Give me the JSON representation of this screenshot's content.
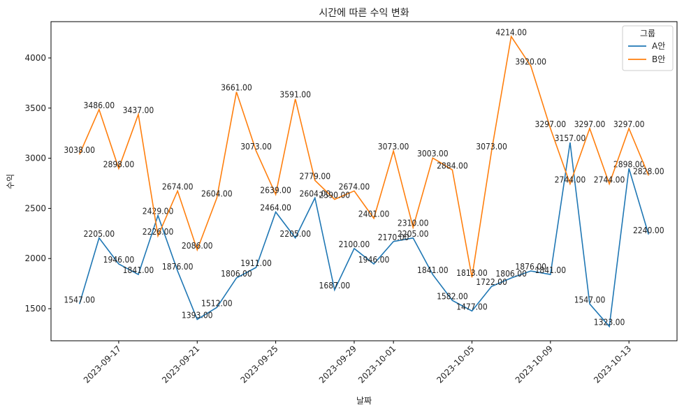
{
  "chart_data": {
    "type": "line",
    "title": "시간에 따른 수익 변화",
    "x_label": "날짜",
    "y_label": "수익",
    "x": [
      "2023-09-15",
      "2023-09-16",
      "2023-09-17",
      "2023-09-18",
      "2023-09-19",
      "2023-09-20",
      "2023-09-21",
      "2023-09-22",
      "2023-09-23",
      "2023-09-24",
      "2023-09-25",
      "2023-09-26",
      "2023-09-27",
      "2023-09-28",
      "2023-09-29",
      "2023-09-30",
      "2023-10-01",
      "2023-10-02",
      "2023-10-03",
      "2023-10-04",
      "2023-10-05",
      "2023-10-06",
      "2023-10-07",
      "2023-10-08",
      "2023-10-09",
      "2023-10-10",
      "2023-10-11",
      "2023-10-12",
      "2023-10-13",
      "2023-10-14"
    ],
    "series": [
      {
        "name": "A안",
        "color": "#1f77b4",
        "values": [
          1547,
          2205,
          1946,
          1841,
          2429,
          1876,
          1393,
          1512,
          1806,
          1911,
          2464,
          2205,
          2604,
          1687,
          2100,
          1946,
          2170,
          2205,
          1841,
          1582,
          1477,
          1722,
          1806,
          1876,
          1841,
          3157,
          1547,
          1323,
          2898,
          2240
        ],
        "value_labels": [
          "1547.00",
          "2205.00",
          "1946.00",
          "1841.00",
          "2429.00",
          "1876.00",
          "1393.00",
          "1512.00",
          "1806.00",
          "1911.00",
          "2464.00",
          "2205.00",
          "2604.00",
          "1687.00",
          "2100.00",
          "1946.00",
          "2170.00",
          "2205.00",
          "1841.00",
          "1582.00",
          "1477.00",
          "1722.00",
          "1806.00",
          "1876.00",
          "1841.00",
          "3157.00",
          "1547.00",
          "1323.00",
          "2898.00",
          "2240.00"
        ]
      },
      {
        "name": "B안",
        "color": "#ff7f0e",
        "values": [
          3038,
          3486,
          2898,
          3437,
          2226,
          2674,
          2086,
          2604,
          3661,
          3073,
          2639,
          3591,
          2779,
          2590,
          2674,
          2401,
          3073,
          2310,
          3003,
          2884,
          1813,
          3073,
          4214,
          3920,
          3297,
          2744,
          3297,
          2744,
          3297,
          2828
        ],
        "value_labels": [
          "3038.00",
          "3486.00",
          "2898.00",
          "3437.00",
          "2226.00",
          "2674.00",
          "2086.00",
          "2604.00",
          "3661.00",
          "3073.00",
          "2639.00",
          "3591.00",
          "2779.00",
          "2590.00",
          "2674.00",
          "2401.00",
          "3073.00",
          "2310.00",
          "3003.00",
          "2884.00",
          "1813.00",
          "3073.00",
          "4214.00",
          "3920.00",
          "3297.00",
          "2744.00",
          "3297.00",
          "2744.00",
          "3297.00",
          "2828.00"
        ]
      }
    ],
    "ylim": [
      1180,
      4362
    ],
    "yticks": [
      1500,
      2000,
      2500,
      3000,
      3500,
      4000
    ],
    "xticks": [
      "2023-09-17",
      "2023-09-21",
      "2023-09-25",
      "2023-09-29",
      "2023-10-01",
      "2023-10-05",
      "2023-10-09",
      "2023-10-13"
    ],
    "legend_title": "그룹",
    "legend": "upper right",
    "grid": false
  }
}
